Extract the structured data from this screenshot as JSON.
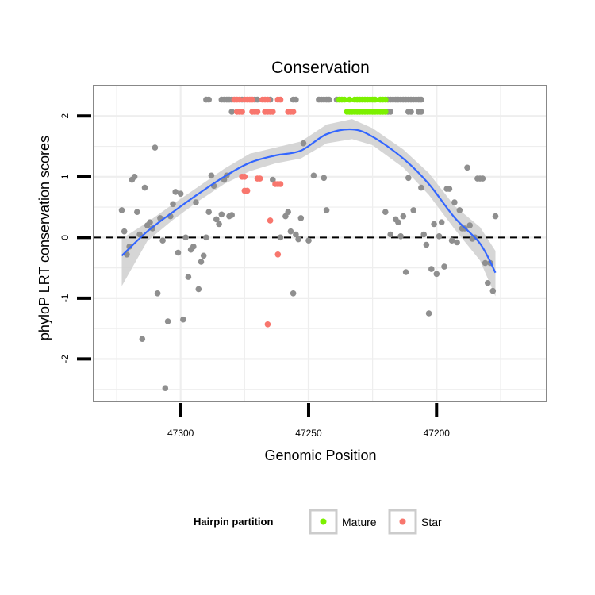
{
  "chart_data": {
    "type": "scatter",
    "title": "Conservation",
    "xlabel": "Genomic Position",
    "ylabel": "phyloP LRT conservation scores",
    "xlim": [
      47334,
      47157
    ],
    "ylim": [
      -2.7,
      2.5
    ],
    "x_reversed": true,
    "x_ticks": [
      47300,
      47250,
      47200
    ],
    "y_ticks": [
      -2,
      -1,
      0,
      1,
      2
    ],
    "x_tick_labels": [
      "47300",
      "47250",
      "47200"
    ],
    "y_tick_labels": [
      "-2",
      "-1",
      "0",
      "1",
      "2"
    ],
    "reference_line": {
      "y": 0,
      "style": "dashed"
    },
    "colors": {
      "Mature": "#7cf000",
      "Star": "#f8766d",
      "Other": "#8f8f8f",
      "smooth_line": "#3366ff",
      "ribbon": "#cfcfcf",
      "panel_border": "#888888",
      "grid": "#eeeeee"
    },
    "legend": {
      "title": "Hairpin partition",
      "position": "bottom",
      "entries": [
        {
          "label": "Mature",
          "color": "#7cf000"
        },
        {
          "label": "Star",
          "color": "#f8766d"
        }
      ]
    },
    "series": [
      {
        "name": "Other",
        "points": [
          [
            47323,
            0.45
          ],
          [
            47322,
            0.1
          ],
          [
            47321,
            -0.28
          ],
          [
            47320,
            -0.15
          ],
          [
            47319,
            0.95
          ],
          [
            47318,
            1.0
          ],
          [
            47317,
            0.42
          ],
          [
            47316,
            0.05
          ],
          [
            47315,
            -1.67
          ],
          [
            47314,
            0.82
          ],
          [
            47313,
            0.2
          ],
          [
            47312,
            0.25
          ],
          [
            47311,
            0.15
          ],
          [
            47310,
            1.48
          ],
          [
            47309,
            -0.92
          ],
          [
            47308,
            0.32
          ],
          [
            47307,
            -0.05
          ],
          [
            47306,
            -2.48
          ],
          [
            47305,
            -1.38
          ],
          [
            47304,
            0.35
          ],
          [
            47303,
            0.55
          ],
          [
            47302,
            0.75
          ],
          [
            47301,
            -0.25
          ],
          [
            47300,
            0.72
          ],
          [
            47299,
            -1.35
          ],
          [
            47298,
            0.0
          ],
          [
            47297,
            -0.65
          ],
          [
            47296,
            -0.2
          ],
          [
            47295,
            -0.15
          ],
          [
            47294,
            0.58
          ],
          [
            47293,
            -0.85
          ],
          [
            47292,
            -0.4
          ],
          [
            47291,
            -0.3
          ],
          [
            47290,
            0.0
          ],
          [
            47289,
            0.42
          ],
          [
            47288,
            1.02
          ],
          [
            47287,
            0.85
          ],
          [
            47286,
            0.3
          ],
          [
            47285,
            0.22
          ],
          [
            47284,
            0.38
          ],
          [
            47283,
            0.95
          ],
          [
            47282,
            1.02
          ],
          [
            47281,
            0.35
          ],
          [
            47280,
            0.37
          ],
          [
            47264,
            0.95
          ],
          [
            47261,
            0.0
          ],
          [
            47259,
            0.35
          ],
          [
            47258,
            0.42
          ],
          [
            47257,
            0.1
          ],
          [
            47256,
            -0.92
          ],
          [
            47255,
            0.05
          ],
          [
            47254,
            -0.03
          ],
          [
            47253,
            0.32
          ],
          [
            47252,
            1.55
          ],
          [
            47250,
            -0.05
          ],
          [
            47248,
            1.02
          ],
          [
            47244,
            0.98
          ],
          [
            47243,
            0.45
          ],
          [
            47220,
            0.42
          ],
          [
            47218,
            0.05
          ],
          [
            47216,
            0.3
          ],
          [
            47215,
            0.25
          ],
          [
            47214,
            0.02
          ],
          [
            47213,
            0.35
          ],
          [
            47212,
            -0.57
          ],
          [
            47211,
            0.98
          ],
          [
            47209,
            0.45
          ],
          [
            47206,
            0.82
          ],
          [
            47205,
            0.05
          ],
          [
            47204,
            -0.12
          ],
          [
            47203,
            -1.25
          ],
          [
            47202,
            -0.52
          ],
          [
            47201,
            0.22
          ],
          [
            47200,
            -0.6
          ],
          [
            47199,
            0.02
          ],
          [
            47198,
            0.25
          ],
          [
            47197,
            -0.48
          ],
          [
            47196,
            0.8
          ],
          [
            47195,
            0.8
          ],
          [
            47194,
            -0.05
          ],
          [
            47193,
            0.58
          ],
          [
            47192,
            -0.08
          ],
          [
            47191,
            0.45
          ],
          [
            47190,
            0.15
          ],
          [
            47189,
            0.15
          ],
          [
            47188,
            1.15
          ],
          [
            47187,
            0.2
          ],
          [
            47186,
            -0.02
          ],
          [
            47185,
            0.0
          ],
          [
            47184,
            0.97
          ],
          [
            47183,
            0.97
          ],
          [
            47182,
            0.97
          ],
          [
            47181,
            -0.42
          ],
          [
            47180,
            -0.75
          ],
          [
            47179,
            -0.42
          ],
          [
            47178,
            -0.88
          ],
          [
            47177,
            0.35
          ],
          [
            47290,
            2.27
          ],
          [
            47289,
            2.27
          ],
          [
            47284,
            2.27
          ],
          [
            47283,
            2.27
          ],
          [
            47282,
            2.27
          ],
          [
            47281,
            2.27
          ],
          [
            47280,
            2.27
          ],
          [
            47280,
            2.07
          ],
          [
            47276,
            2.27
          ],
          [
            47271,
            2.27
          ],
          [
            47270,
            2.27
          ],
          [
            47265,
            2.27
          ],
          [
            47256,
            2.27
          ],
          [
            47255,
            2.27
          ],
          [
            47246,
            2.27
          ],
          [
            47245,
            2.27
          ],
          [
            47244,
            2.27
          ],
          [
            47243,
            2.27
          ],
          [
            47242,
            2.27
          ],
          [
            47239,
            2.27
          ],
          [
            47219,
            2.27
          ],
          [
            47218,
            2.27
          ],
          [
            47217,
            2.27
          ],
          [
            47216,
            2.27
          ],
          [
            47215,
            2.27
          ],
          [
            47214,
            2.27
          ],
          [
            47213,
            2.27
          ],
          [
            47212,
            2.27
          ],
          [
            47211,
            2.27
          ],
          [
            47210,
            2.27
          ],
          [
            47209,
            2.27
          ],
          [
            47208,
            2.27
          ],
          [
            47207,
            2.27
          ],
          [
            47206,
            2.27
          ],
          [
            47219,
            2.07
          ],
          [
            47218,
            2.07
          ],
          [
            47211,
            2.07
          ],
          [
            47210,
            2.07
          ],
          [
            47207,
            2.07
          ],
          [
            47206,
            2.07
          ]
        ]
      },
      {
        "name": "Star",
        "points": [
          [
            47279,
            2.27
          ],
          [
            47278,
            2.27
          ],
          [
            47277,
            2.27
          ],
          [
            47275,
            2.27
          ],
          [
            47274,
            2.27
          ],
          [
            47273,
            2.27
          ],
          [
            47272,
            2.27
          ],
          [
            47268,
            2.27
          ],
          [
            47267,
            2.27
          ],
          [
            47266,
            2.27
          ],
          [
            47262,
            2.27
          ],
          [
            47261,
            2.27
          ],
          [
            47278,
            2.07
          ],
          [
            47277,
            2.07
          ],
          [
            47276,
            2.07
          ],
          [
            47272,
            2.07
          ],
          [
            47271,
            2.07
          ],
          [
            47270,
            2.07
          ],
          [
            47267,
            2.07
          ],
          [
            47266,
            2.07
          ],
          [
            47265,
            2.07
          ],
          [
            47264,
            2.07
          ],
          [
            47258,
            2.07
          ],
          [
            47257,
            2.07
          ],
          [
            47256,
            2.07
          ],
          [
            47276,
            1.0
          ],
          [
            47275,
            1.0
          ],
          [
            47275,
            0.77
          ],
          [
            47274,
            0.77
          ],
          [
            47270,
            0.97
          ],
          [
            47269,
            0.97
          ],
          [
            47263,
            0.88
          ],
          [
            47262,
            0.88
          ],
          [
            47261,
            0.88
          ],
          [
            47265,
            0.28
          ],
          [
            47262,
            -0.28
          ],
          [
            47266,
            -1.43
          ]
        ]
      },
      {
        "name": "Mature",
        "points": [
          [
            47238,
            2.27
          ],
          [
            47237,
            2.27
          ],
          [
            47236,
            2.27
          ],
          [
            47234,
            2.27
          ],
          [
            47232,
            2.27
          ],
          [
            47231,
            2.27
          ],
          [
            47230,
            2.27
          ],
          [
            47229,
            2.27
          ],
          [
            47228,
            2.27
          ],
          [
            47227,
            2.27
          ],
          [
            47226,
            2.27
          ],
          [
            47225,
            2.27
          ],
          [
            47224,
            2.27
          ],
          [
            47222,
            2.27
          ],
          [
            47221,
            2.27
          ],
          [
            47220,
            2.27
          ],
          [
            47235,
            2.07
          ],
          [
            47234,
            2.07
          ],
          [
            47233,
            2.07
          ],
          [
            47232,
            2.07
          ],
          [
            47231,
            2.07
          ],
          [
            47230,
            2.07
          ],
          [
            47229,
            2.07
          ],
          [
            47228,
            2.07
          ],
          [
            47227,
            2.07
          ],
          [
            47226,
            2.07
          ],
          [
            47225,
            2.07
          ],
          [
            47224,
            2.07
          ],
          [
            47223,
            2.07
          ],
          [
            47222,
            2.07
          ],
          [
            47221,
            2.07
          ],
          [
            47220,
            2.07
          ]
        ]
      }
    ],
    "smooth": {
      "x": [
        47323,
        47313,
        47303,
        47293,
        47283,
        47273,
        47263,
        47253,
        47243,
        47233,
        47225,
        47213,
        47203,
        47193,
        47183,
        47177
      ],
      "y": [
        -0.3,
        0.1,
        0.42,
        0.72,
        1.0,
        1.23,
        1.35,
        1.43,
        1.7,
        1.78,
        1.66,
        1.3,
        0.88,
        0.33,
        -0.1,
        -0.58
      ],
      "upper": [
        -0.02,
        0.25,
        0.55,
        0.84,
        1.13,
        1.38,
        1.48,
        1.58,
        1.86,
        1.95,
        1.8,
        1.45,
        1.06,
        0.52,
        0.17,
        -0.22
      ],
      "lower": [
        -0.8,
        -0.06,
        0.29,
        0.6,
        0.88,
        1.09,
        1.22,
        1.3,
        1.55,
        1.62,
        1.52,
        1.15,
        0.7,
        0.14,
        -0.38,
        -0.97
      ]
    }
  }
}
